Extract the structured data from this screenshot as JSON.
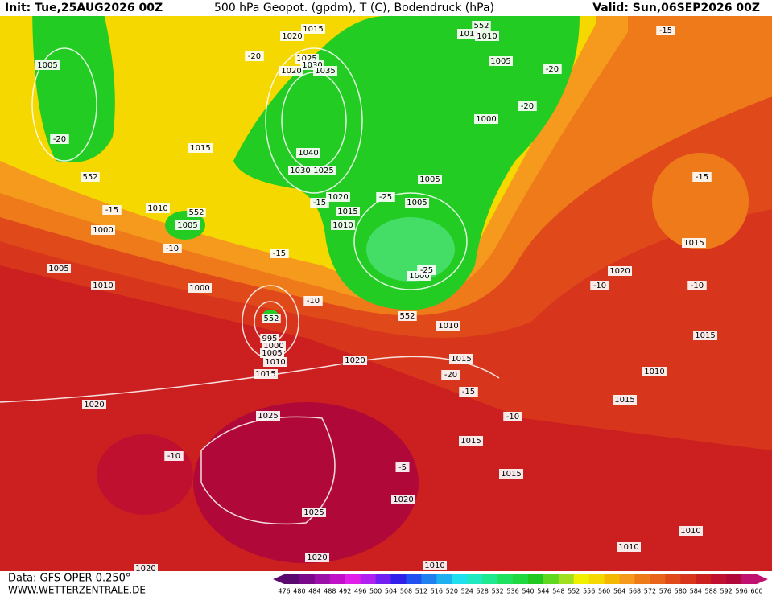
{
  "header": {
    "init": "Init: Tue,25AUG2026 00Z",
    "title": "500 hPa Geopot. (gpdm), T (C), Bodendruck (hPa)",
    "valid": "Valid: Sun,06SEP2026 00Z"
  },
  "footer": {
    "source": "Data: GFS OPER 0.250°",
    "site": "WWW.WETTERZENTRALE.DE"
  },
  "colorbar": {
    "ticks": [
      476,
      480,
      484,
      488,
      492,
      496,
      500,
      504,
      508,
      512,
      516,
      520,
      524,
      528,
      532,
      536,
      540,
      544,
      548,
      552,
      556,
      560,
      564,
      568,
      572,
      576,
      580,
      584,
      588,
      592,
      596,
      600
    ],
    "colors": [
      "#5a0a6e",
      "#7a0a8a",
      "#9a10a8",
      "#c010c8",
      "#e020e8",
      "#b020f0",
      "#7020f0",
      "#3020e8",
      "#2050f0",
      "#2080f0",
      "#20b0f0",
      "#20e0f0",
      "#20e8c0",
      "#20e890",
      "#20e060",
      "#20d840",
      "#20c820",
      "#60d820",
      "#a0e020",
      "#f0f000",
      "#f5d800",
      "#f5b800",
      "#f59a1c",
      "#ee7a1a",
      "#e8641a",
      "#e04a1a",
      "#d8361c",
      "#cc2020",
      "#c01030",
      "#b00838",
      "#c01070"
    ]
  },
  "map": {
    "labels": [
      "1020",
      "1015",
      "1025",
      "1030",
      "1020",
      "1035",
      "1040",
      "1030",
      "1025",
      "1020",
      "1015",
      "1010",
      "1005",
      "-20",
      "552",
      "1015",
      "1010",
      "-15",
      "1000",
      "552",
      "1005",
      "-10",
      "1005",
      "1010",
      "1000",
      "-15",
      "-10",
      "552",
      "995",
      "1000",
      "1005",
      "1010",
      "1015",
      "1020",
      "1020",
      "1025",
      "-10",
      "1025",
      "1020",
      "1020",
      "1010",
      "1020",
      "-5",
      "1015",
      "1015",
      "-10",
      "-15",
      "-20",
      "1015",
      "1010",
      "552",
      "1000",
      "-25",
      "-25",
      "1005",
      "1005",
      "1015",
      "1010",
      "552",
      "1005",
      "-20",
      "-20",
      "1000",
      "-15",
      "-15",
      "1015",
      "1020",
      "-10",
      "-10",
      "1015",
      "1010",
      "1015",
      "1010",
      "1010",
      "-20",
      "-15"
    ]
  }
}
